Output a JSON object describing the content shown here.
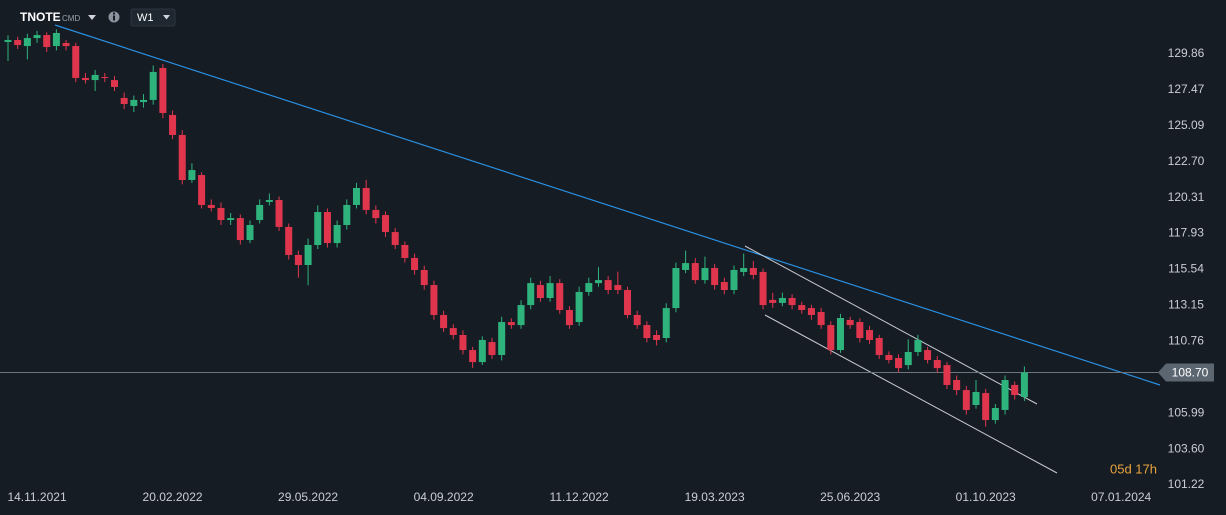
{
  "header": {
    "symbol": "TNOTE",
    "kind": "CMD",
    "interval": "W1"
  },
  "countdown": "05d 17h",
  "chart_data": {
    "type": "candlestick",
    "categories": [
      null,
      null,
      null,
      "14.11.2021",
      null,
      null,
      null,
      null,
      null,
      null,
      null,
      null,
      null,
      null,
      null,
      null,
      null,
      "20.02.2022",
      null,
      null,
      null,
      null,
      null,
      null,
      null,
      null,
      null,
      null,
      null,
      null,
      null,
      "29.05.2022",
      null,
      null,
      null,
      null,
      null,
      null,
      null,
      null,
      null,
      null,
      null,
      null,
      null,
      "04.09.2022",
      null,
      null,
      null,
      null,
      null,
      null,
      null,
      null,
      null,
      null,
      null,
      null,
      null,
      "11.12.2022",
      null,
      null,
      null,
      null,
      null,
      null,
      null,
      null,
      null,
      null,
      null,
      null,
      null,
      "19.03.2023",
      null,
      null,
      null,
      null,
      null,
      null,
      null,
      null,
      null,
      null,
      null,
      null,
      null,
      "25.06.2023",
      null,
      null,
      null,
      null,
      null,
      null,
      null,
      null,
      null,
      null,
      null,
      null,
      null,
      "01.10.2023",
      null,
      null,
      null,
      null,
      null,
      null,
      null,
      null,
      null,
      null,
      null,
      null,
      null,
      "07.01.2024",
      null,
      null,
      null,
      null
    ],
    "open": [
      130.66,
      130.79,
      130.39,
      130.92,
      131.12,
      130.39,
      130.59,
      130.39,
      128.27,
      128.13,
      128.33,
      128.13,
      126.94,
      126.41,
      126.67,
      126.81,
      128.93,
      125.81,
      124.48,
      121.49,
      121.82,
      119.83,
      119.63,
      118.83,
      118.96,
      117.5,
      118.83,
      120.03,
      120.16,
      118.37,
      116.51,
      115.84,
      117.17,
      119.36,
      117.3,
      118.5,
      119.83,
      120.96,
      119.5,
      119.16,
      118.03,
      117.17,
      116.31,
      115.51,
      114.51,
      112.52,
      111.65,
      111.19,
      110.19,
      109.39,
      110.72,
      109.86,
      112.05,
      111.85,
      113.18,
      114.51,
      113.65,
      114.64,
      112.85,
      112.05,
      114.05,
      114.64,
      114.84,
      114.51,
      114.18,
      112.52,
      111.85,
      111.19,
      110.99,
      112.98,
      115.51,
      115.97,
      114.84,
      115.64,
      114.71,
      114.18,
      115.38,
      115.64,
      115.38,
      113.52,
      113.32,
      113.65,
      113.18,
      112.98,
      112.72,
      111.85,
      110.19,
      112.19,
      112.05,
      111.52,
      110.99,
      109.86,
      109.66,
      109.19,
      110.06,
      110.19,
      109.53,
      109.19,
      108.2,
      107.53,
      106.54,
      107.33,
      105.54,
      106.21,
      107.87,
      107.07,
      null,
      null,
      null,
      null,
      null,
      null,
      null,
      null,
      null,
      null,
      null,
      null,
      null,
      null
    ],
    "high": [
      131.1,
      131.0,
      131.2,
      131.4,
      131.3,
      131.5,
      130.8,
      130.6,
      128.6,
      128.8,
      128.6,
      128.4,
      127.3,
      127.1,
      127.2,
      129.1,
      129.2,
      126.1,
      124.8,
      122.6,
      122.0,
      120.2,
      120.0,
      119.3,
      119.2,
      118.8,
      120.2,
      120.6,
      120.4,
      118.6,
      116.8,
      117.6,
      119.8,
      119.6,
      118.8,
      120.2,
      121.3,
      121.5,
      119.8,
      119.4,
      118.3,
      117.4,
      116.6,
      115.8,
      114.8,
      112.8,
      111.9,
      111.5,
      110.4,
      111.1,
      111.0,
      112.4,
      112.3,
      113.5,
      115.0,
      114.8,
      115.1,
      114.9,
      113.1,
      114.4,
      115.0,
      115.7,
      115.1,
      115.4,
      114.4,
      112.8,
      112.1,
      111.5,
      113.3,
      116.0,
      116.8,
      116.3,
      116.4,
      115.9,
      115.0,
      115.8,
      116.6,
      116.1,
      115.6,
      114.0,
      114.0,
      113.9,
      113.4,
      113.2,
      113.0,
      112.1,
      112.6,
      112.4,
      112.3,
      111.8,
      111.2,
      110.1,
      109.9,
      110.9,
      111.2,
      110.4,
      109.8,
      109.4,
      108.5,
      107.8,
      108.2,
      107.6,
      106.6,
      108.5,
      108.1,
      109.1,
      null,
      null,
      null,
      null,
      null,
      null,
      null,
      null,
      null,
      null,
      null,
      null,
      null,
      null
    ],
    "low": [
      129.4,
      130.2,
      129.5,
      130.6,
      130.0,
      130.1,
      130.1,
      128.0,
      127.9,
      127.4,
      128.0,
      127.4,
      126.2,
      126.0,
      126.3,
      126.5,
      125.6,
      124.2,
      121.2,
      121.3,
      119.6,
      119.4,
      118.5,
      118.5,
      117.2,
      117.3,
      118.6,
      119.8,
      118.1,
      116.2,
      115.0,
      114.5,
      116.9,
      117.0,
      117.0,
      118.2,
      119.6,
      119.2,
      118.6,
      117.7,
      116.9,
      116.0,
      115.2,
      114.2,
      112.2,
      111.4,
      110.9,
      109.9,
      109.0,
      109.2,
      109.6,
      109.5,
      111.6,
      111.6,
      112.9,
      113.4,
      113.4,
      112.6,
      111.6,
      111.8,
      113.8,
      114.4,
      113.9,
      113.9,
      112.3,
      111.6,
      110.7,
      110.5,
      110.7,
      112.7,
      115.3,
      114.6,
      114.6,
      114.2,
      113.9,
      113.9,
      115.1,
      114.9,
      112.9,
      113.0,
      113.1,
      112.9,
      112.6,
      112.2,
      111.6,
      109.9,
      110.0,
      111.6,
      110.7,
      110.6,
      109.6,
      109.3,
      108.7,
      108.9,
      109.8,
      109.3,
      108.7,
      107.6,
      107.2,
      105.9,
      106.3,
      105.1,
      105.3,
      105.9,
      106.9,
      106.8,
      null,
      null,
      null,
      null,
      null,
      null,
      null,
      null,
      null,
      null,
      null,
      null,
      null,
      null
    ],
    "close": [
      130.79,
      130.46,
      130.92,
      131.12,
      130.33,
      131.26,
      130.39,
      128.27,
      128.13,
      128.47,
      128.27,
      127.67,
      126.54,
      126.81,
      126.81,
      128.67,
      125.94,
      124.48,
      121.49,
      122.15,
      119.83,
      119.63,
      118.83,
      118.96,
      117.5,
      118.5,
      119.83,
      120.16,
      118.37,
      116.51,
      115.84,
      117.17,
      119.36,
      117.3,
      118.5,
      119.83,
      120.96,
      119.5,
      118.96,
      118.03,
      117.17,
      116.31,
      115.51,
      114.51,
      112.52,
      111.65,
      111.19,
      110.19,
      109.39,
      110.86,
      109.86,
      112.05,
      111.85,
      113.18,
      114.64,
      113.65,
      114.64,
      112.85,
      111.85,
      114.05,
      114.64,
      114.84,
      114.18,
      114.18,
      112.52,
      111.85,
      110.99,
      110.86,
      112.98,
      115.64,
      115.97,
      114.84,
      115.64,
      114.51,
      114.18,
      115.51,
      115.64,
      115.18,
      113.18,
      113.32,
      113.65,
      113.18,
      112.85,
      112.52,
      111.85,
      110.19,
      112.32,
      111.85,
      110.99,
      110.86,
      109.86,
      109.53,
      108.99,
      110.06,
      110.86,
      109.53,
      108.99,
      107.87,
      107.53,
      106.21,
      107.4,
      105.54,
      106.34,
      108.2,
      107.2,
      108.7,
      null,
      null,
      null,
      null,
      null,
      null,
      null,
      null,
      null,
      null,
      null,
      null,
      null,
      null
    ],
    "up_color": "#2fb37c",
    "down_color": "#e0364d",
    "ylim": [
      101.09,
      133.45
    ],
    "yticks": [
      {
        "value": 101.22,
        "label": "101.22"
      },
      {
        "value": 103.6,
        "label": "103.60"
      },
      105.99,
      110.76,
      113.15,
      115.54,
      117.93,
      120.31,
      {
        "value": 122.7,
        "label": "122.70"
      },
      125.09,
      127.47,
      129.86
    ],
    "last": {
      "value": 108.7,
      "label": "108.70"
    },
    "grid": false
  }
}
